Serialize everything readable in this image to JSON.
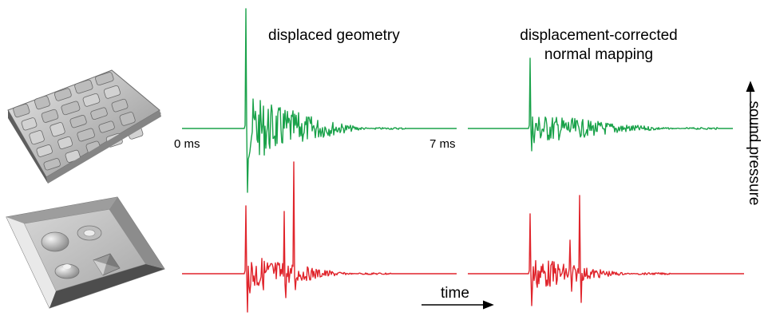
{
  "figure": {
    "title_left": "displaced geometry",
    "title_right_line1": "displacement-corrected",
    "title_right_line2": "normal mapping",
    "time_start": "0 ms",
    "time_end": "7 ms",
    "time_axis_label": "time",
    "y_axis_label": "sound pressure",
    "colors": {
      "top_signal": "#1aa24a",
      "bottom_signal": "#e0242b",
      "surface": "#b9b9b9"
    },
    "icons": [
      "bumpy-surface-icon",
      "shapes-tray-icon"
    ]
  }
}
